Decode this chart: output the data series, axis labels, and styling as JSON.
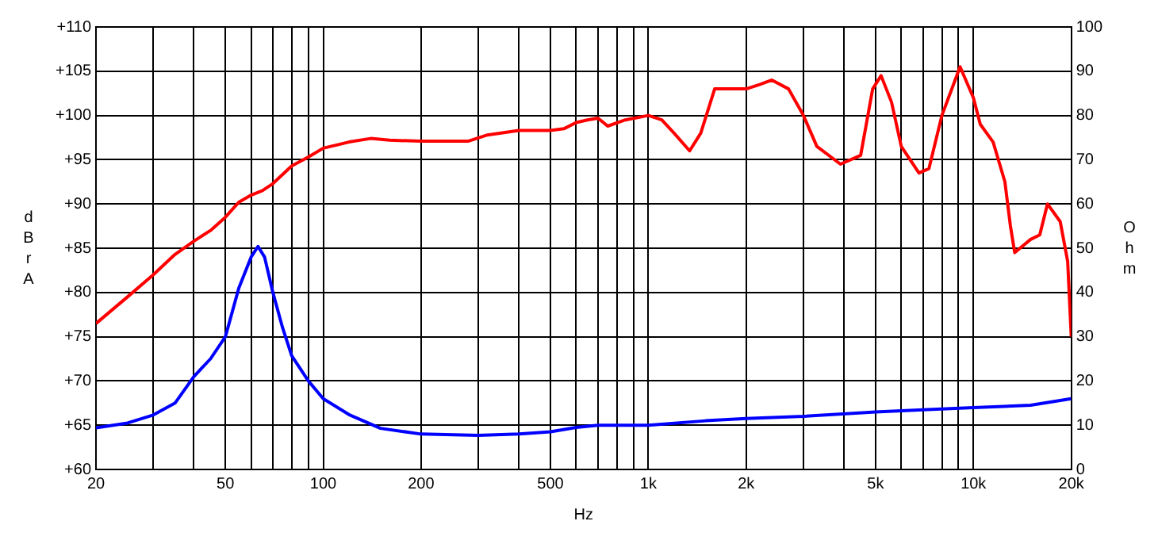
{
  "chart_data": {
    "type": "line",
    "xlabel": "Hz",
    "ylabel": "dBrA",
    "y2label": "Ohm",
    "log": "x",
    "grid": true,
    "legend": false,
    "marker": "none",
    "line_style": "solid",
    "xlim": [
      20,
      20000
    ],
    "xticks": [
      20,
      {
        "value": 30,
        "label": null
      },
      {
        "value": 40,
        "label": null
      },
      50,
      {
        "value": 60,
        "label": null
      },
      {
        "value": 70,
        "label": null
      },
      {
        "value": 80,
        "label": null
      },
      {
        "value": 90,
        "label": null
      },
      100,
      200,
      {
        "value": 300,
        "label": null
      },
      {
        "value": 400,
        "label": null
      },
      500,
      {
        "value": 600,
        "label": null
      },
      {
        "value": 700,
        "label": null
      },
      {
        "value": 800,
        "label": null
      },
      {
        "value": 900,
        "label": null
      },
      {
        "value": 1000,
        "label": "1k"
      },
      {
        "value": 2000,
        "label": "2k"
      },
      {
        "value": 3000,
        "label": null
      },
      {
        "value": 4000,
        "label": null
      },
      {
        "value": 5000,
        "label": "5k"
      },
      {
        "value": 6000,
        "label": null
      },
      {
        "value": 7000,
        "label": null
      },
      {
        "value": 8000,
        "label": null
      },
      {
        "value": 9000,
        "label": null
      },
      {
        "value": 10000,
        "label": "10k"
      },
      {
        "value": 20000,
        "label": "20k"
      }
    ],
    "ylim": [
      60,
      110
    ],
    "yticks": [
      {
        "value": 60,
        "label": "+60"
      },
      {
        "value": 65,
        "label": "+65"
      },
      {
        "value": 70,
        "label": "+70"
      },
      {
        "value": 75,
        "label": "+75"
      },
      {
        "value": 80,
        "label": "+80"
      },
      {
        "value": 85,
        "label": "+85"
      },
      {
        "value": 90,
        "label": "+90"
      },
      {
        "value": 95,
        "label": "+95"
      },
      {
        "value": 100,
        "label": "+100"
      },
      {
        "value": 105,
        "label": "+105"
      },
      {
        "value": 110,
        "label": "+110"
      }
    ],
    "y2lim": [
      0,
      100
    ],
    "y2ticks": [
      0,
      10,
      20,
      30,
      40,
      50,
      60,
      70,
      80,
      90,
      100
    ],
    "series": [
      {
        "color": "#ff0000",
        "x": [
          20,
          25,
          30,
          35,
          40,
          45,
          50,
          55,
          60,
          65,
          70,
          80,
          90,
          100,
          120,
          140,
          160,
          200,
          250,
          280,
          320,
          400,
          500,
          550,
          600,
          650,
          700,
          750,
          850,
          1000,
          1100,
          1200,
          1340,
          1450,
          1600,
          2000,
          2200,
          2400,
          2700,
          3000,
          3300,
          3900,
          4500,
          4900,
          5200,
          5600,
          6000,
          6800,
          7300,
          8000,
          9100,
          10000,
          10500,
          11500,
          12500,
          13000,
          13400,
          15000,
          16000,
          16900,
          18500,
          19500,
          20000
        ],
        "values": [
          76.5,
          79.5,
          82,
          84.3,
          85.8,
          87,
          88.5,
          90.2,
          91,
          91.5,
          92.3,
          94.3,
          95.3,
          96.3,
          97,
          97.4,
          97.2,
          97.1,
          97.1,
          97.1,
          97.8,
          98.3,
          98.3,
          98.5,
          99.2,
          99.5,
          99.7,
          98.8,
          99.5,
          100,
          99.5,
          98,
          96,
          98,
          103,
          103,
          103.5,
          104,
          103,
          100,
          96.5,
          94.5,
          95.5,
          103,
          104.5,
          101.5,
          96.5,
          93.5,
          94,
          100,
          105.5,
          102,
          99,
          97,
          92.5,
          87.5,
          84.5,
          86,
          86.5,
          90,
          88,
          83.5,
          75
        ]
      },
      {
        "axis": "y2",
        "color": "#0000ff",
        "x": [
          20,
          25,
          30,
          35,
          40,
          45,
          50,
          55,
          60,
          63,
          66,
          70,
          75,
          80,
          90,
          100,
          120,
          150,
          200,
          300,
          400,
          500,
          600,
          700,
          1000,
          1500,
          2000,
          3000,
          5000,
          7000,
          10000,
          15000,
          20000
        ],
        "values": [
          9.4,
          10.5,
          12.3,
          15,
          21,
          25,
          30,
          41,
          48,
          50.4,
          48,
          40,
          32,
          25.7,
          20,
          16,
          12.4,
          9.3,
          8,
          7.7,
          8,
          8.5,
          9.5,
          10,
          10,
          11,
          11.5,
          12,
          13,
          13.5,
          14,
          14.5,
          16
        ]
      }
    ]
  }
}
